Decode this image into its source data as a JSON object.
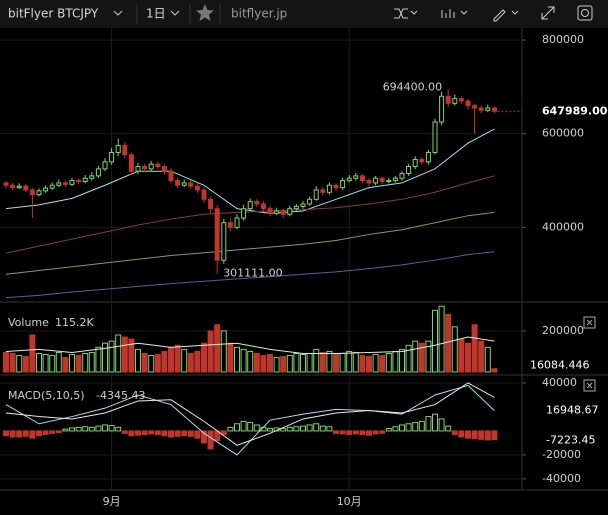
{
  "toolbar": {
    "symbol": "bitFlyer BTCJPY",
    "interval": "1日",
    "site": "bitflyer.jp"
  },
  "chart_data": [
    {
      "type": "candlestick",
      "up_color": "#7fd36a",
      "down_color": "#c0362c",
      "candles": [
        [
          495000,
          500000,
          484000,
          490000
        ],
        [
          490000,
          496000,
          480000,
          485000
        ],
        [
          485000,
          494000,
          482000,
          488000
        ],
        [
          488000,
          492000,
          475000,
          480000
        ],
        [
          480000,
          484000,
          420000,
          470000
        ],
        [
          470000,
          483000,
          466000,
          478000
        ],
        [
          478000,
          490000,
          474000,
          484000
        ],
        [
          484000,
          496000,
          480000,
          490000
        ],
        [
          490000,
          502000,
          486000,
          495000
        ],
        [
          495000,
          499000,
          486000,
          492000
        ],
        [
          492000,
          506000,
          488000,
          500000
        ],
        [
          500000,
          504000,
          492000,
          498000
        ],
        [
          498000,
          512000,
          494000,
          505000
        ],
        [
          505000,
          518000,
          500000,
          510000
        ],
        [
          510000,
          532000,
          506000,
          525000
        ],
        [
          525000,
          548000,
          520000,
          540000
        ],
        [
          540000,
          570000,
          534000,
          560000
        ],
        [
          560000,
          590000,
          552000,
          575000
        ],
        [
          575000,
          582000,
          548000,
          555000
        ],
        [
          555000,
          560000,
          512000,
          520000
        ],
        [
          520000,
          538000,
          514000,
          530000
        ],
        [
          530000,
          536000,
          518000,
          525000
        ],
        [
          525000,
          542000,
          520000,
          535000
        ],
        [
          535000,
          540000,
          524000,
          530000
        ],
        [
          530000,
          534000,
          512000,
          520000
        ],
        [
          520000,
          526000,
          494000,
          500000
        ],
        [
          500000,
          506000,
          484000,
          490000
        ],
        [
          490000,
          502000,
          486000,
          495000
        ],
        [
          495000,
          500000,
          482000,
          488000
        ],
        [
          488000,
          494000,
          474000,
          480000
        ],
        [
          480000,
          486000,
          452000,
          460000
        ],
        [
          460000,
          466000,
          430000,
          440000
        ],
        [
          440000,
          448000,
          301111,
          330000
        ],
        [
          330000,
          418000,
          322000,
          410000
        ],
        [
          410000,
          420000,
          392000,
          400000
        ],
        [
          400000,
          428000,
          396000,
          420000
        ],
        [
          420000,
          448000,
          414000,
          440000
        ],
        [
          440000,
          462000,
          436000,
          455000
        ],
        [
          455000,
          460000,
          444000,
          450000
        ],
        [
          450000,
          456000,
          434000,
          440000
        ],
        [
          440000,
          446000,
          424000,
          430000
        ],
        [
          430000,
          442000,
          426000,
          435000
        ],
        [
          435000,
          440000,
          420000,
          428000
        ],
        [
          428000,
          446000,
          424000,
          440000
        ],
        [
          440000,
          450000,
          436000,
          445000
        ],
        [
          445000,
          456000,
          440000,
          450000
        ],
        [
          450000,
          466000,
          446000,
          460000
        ],
        [
          460000,
          488000,
          456000,
          480000
        ],
        [
          480000,
          486000,
          468000,
          475000
        ],
        [
          475000,
          496000,
          470000,
          490000
        ],
        [
          490000,
          494000,
          478000,
          485000
        ],
        [
          485000,
          506000,
          480000,
          500000
        ],
        [
          500000,
          512000,
          496000,
          505000
        ],
        [
          505000,
          516000,
          500000,
          510000
        ],
        [
          510000,
          514000,
          494000,
          500000
        ],
        [
          500000,
          504000,
          488000,
          495000
        ],
        [
          495000,
          510000,
          490000,
          505000
        ],
        [
          505000,
          508000,
          492000,
          498000
        ],
        [
          498000,
          506000,
          494000,
          500000
        ],
        [
          500000,
          510000,
          496000,
          505000
        ],
        [
          505000,
          520000,
          500000,
          515000
        ],
        [
          515000,
          536000,
          510000,
          530000
        ],
        [
          530000,
          552000,
          524000,
          545000
        ],
        [
          545000,
          550000,
          534000,
          540000
        ],
        [
          540000,
          566000,
          534000,
          560000
        ],
        [
          560000,
          632000,
          556000,
          625000
        ],
        [
          625000,
          690000,
          618000,
          680000
        ],
        [
          680000,
          694400,
          656000,
          665000
        ],
        [
          665000,
          684000,
          660000,
          675000
        ],
        [
          675000,
          680000,
          664000,
          670000
        ],
        [
          670000,
          674000,
          652000,
          660000
        ],
        [
          660000,
          664000,
          600000,
          655000
        ],
        [
          655000,
          660000,
          644000,
          650000
        ],
        [
          650000,
          662000,
          646000,
          655000
        ],
        [
          655000,
          658000,
          644000,
          647989
        ]
      ],
      "series": [
        {
          "color": "#a8dff0",
          "x": [
            0,
            5,
            10,
            15,
            20,
            25,
            30,
            35,
            40,
            45,
            50,
            55,
            60,
            65,
            70,
            74
          ],
          "values": [
            440000,
            448000,
            462000,
            490000,
            520000,
            520000,
            490000,
            440000,
            430000,
            435000,
            460000,
            485000,
            495000,
            525000,
            580000,
            610000
          ]
        },
        {
          "color": "#8a3a3a",
          "x": [
            0,
            5,
            10,
            15,
            20,
            25,
            30,
            35,
            40,
            45,
            50,
            55,
            60,
            65,
            70,
            74
          ],
          "values": [
            345000,
            360000,
            375000,
            390000,
            405000,
            418000,
            428000,
            432000,
            435000,
            438000,
            442000,
            450000,
            460000,
            475000,
            495000,
            510000
          ]
        },
        {
          "color": "#7f9e5a",
          "x": [
            0,
            5,
            10,
            15,
            20,
            25,
            30,
            35,
            40,
            45,
            50,
            55,
            60,
            65,
            70,
            74
          ],
          "values": [
            300000,
            308000,
            316000,
            324000,
            332000,
            340000,
            346000,
            352000,
            358000,
            364000,
            372000,
            385000,
            395000,
            410000,
            425000,
            432000
          ]
        },
        {
          "color": "#5060a8",
          "x": [
            0,
            5,
            10,
            15,
            20,
            25,
            30,
            35,
            40,
            45,
            50,
            55,
            60,
            65,
            70,
            74
          ],
          "values": [
            250000,
            255000,
            262000,
            268000,
            274000,
            280000,
            285000,
            290000,
            295000,
            300000,
            305000,
            312000,
            320000,
            330000,
            342000,
            348000
          ]
        }
      ],
      "current": {
        "value": 647989,
        "label": "647989.00"
      },
      "annotations": [
        {
          "index": 67,
          "value": 694400,
          "label": "694400.00"
        },
        {
          "index": 32,
          "value": 301111,
          "label": "301111.00"
        }
      ],
      "ylim": [
        245000,
        821500
      ],
      "yticks": [
        400000,
        600000,
        800000
      ],
      "xticks": [
        {
          "value": 16,
          "label": "9月"
        },
        {
          "value": 52,
          "label": "10月"
        }
      ]
    },
    {
      "type": "bar",
      "title": "Volume",
      "value_label": "115.2K",
      "values": [
        95000,
        90000,
        80000,
        75000,
        180000,
        90000,
        85000,
        80000,
        95000,
        70000,
        85000,
        80000,
        90000,
        95000,
        120000,
        140000,
        150000,
        180000,
        170000,
        160000,
        110000,
        90000,
        80000,
        85000,
        100000,
        120000,
        130000,
        110000,
        90000,
        100000,
        140000,
        200000,
        230000,
        200000,
        140000,
        120000,
        110000,
        100000,
        90000,
        80000,
        85000,
        70000,
        75000,
        80000,
        90000,
        85000,
        90000,
        110000,
        95000,
        100000,
        85000,
        90000,
        100000,
        95000,
        80000,
        75000,
        85000,
        80000,
        90000,
        100000,
        110000,
        130000,
        150000,
        140000,
        150000,
        300000,
        320000,
        280000,
        220000,
        160000,
        140000,
        230000,
        150000,
        120000,
        16084.446
      ],
      "series": [
        {
          "color": "#e8e8e8",
          "x": [
            0,
            5,
            10,
            15,
            20,
            25,
            30,
            35,
            40,
            45,
            50,
            55,
            60,
            65,
            70,
            74
          ],
          "values": [
            100000,
            110000,
            95000,
            115000,
            140000,
            120000,
            130000,
            140000,
            110000,
            90000,
            90000,
            95000,
            100000,
            130000,
            170000,
            150000
          ]
        }
      ],
      "ylim": [
        0,
        326000
      ],
      "yticks": [
        200000
      ]
    },
    {
      "type": "macd",
      "title": "MACD(5,10,5)",
      "value": -4345.43,
      "values": [
        -4000,
        -5000,
        -5000,
        -4500,
        -6000,
        -4000,
        -3000,
        -2000,
        -1500,
        1500,
        2500,
        3000,
        3500,
        3000,
        4000,
        5000,
        4500,
        3000,
        -2000,
        -4000,
        -3500,
        -3000,
        -2500,
        -3000,
        -4000,
        -5000,
        -4500,
        -4000,
        -4500,
        -6000,
        -10000,
        -15000,
        -8000,
        -3000,
        3000,
        6000,
        8000,
        7000,
        5000,
        3000,
        2000,
        2500,
        2000,
        3000,
        3500,
        4000,
        5000,
        6000,
        4000,
        3500,
        -2000,
        -2500,
        -3000,
        -2500,
        -3000,
        -3500,
        -2500,
        -2000,
        2000,
        3500,
        5000,
        6000,
        7000,
        8000,
        12000,
        14000,
        10000,
        4000,
        -3000,
        -5000,
        -6000,
        -6500,
        -7000,
        -7500,
        -7223.45
      ],
      "series": [
        {
          "color": "#a8dff0",
          "x": [
            0,
            5,
            10,
            15,
            20,
            25,
            30,
            35,
            40,
            45,
            50,
            55,
            60,
            65,
            70,
            74
          ],
          "values": [
            22000,
            6000,
            12000,
            19000,
            30000,
            22000,
            -2000,
            -20000,
            9000,
            14000,
            18000,
            17000,
            14000,
            30000,
            38000,
            16948.67
          ]
        },
        {
          "color": "#e8e8e8",
          "x": [
            0,
            5,
            10,
            15,
            20,
            25,
            30,
            35,
            40,
            45,
            50,
            55,
            60,
            65,
            70,
            74
          ],
          "values": [
            15000,
            12000,
            10000,
            15000,
            25000,
            26000,
            8000,
            -12000,
            -2000,
            10000,
            15000,
            17000,
            15000,
            22000,
            40000,
            28000
          ]
        }
      ],
      "ylim": [
        -47600,
        45000
      ],
      "yticks": [
        -40000,
        -20000,
        40000
      ]
    }
  ]
}
